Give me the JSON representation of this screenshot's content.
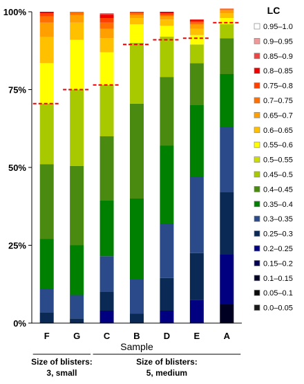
{
  "chart_data": {
    "type": "bar",
    "stacked": true,
    "xlabel": "Sample",
    "ylabel": "",
    "ylim": [
      0,
      100
    ],
    "y_ticks": [
      "0%",
      "25%",
      "50%",
      "75%",
      "100%"
    ],
    "categories": [
      "F",
      "G",
      "C",
      "B",
      "D",
      "E",
      "A"
    ],
    "legend_title": "LC",
    "legend_position": "right",
    "series": [
      {
        "name": "0.0–0.05",
        "color": "#1a1a1a",
        "values": [
          0,
          0,
          0,
          0,
          0,
          0,
          0
        ]
      },
      {
        "name": "0.05–0.1",
        "color": "#0a0a0a",
        "values": [
          0,
          0,
          0,
          0,
          0,
          0,
          0
        ]
      },
      {
        "name": "0.1–0.15",
        "color": "#000022",
        "values": [
          0,
          0,
          0,
          0,
          0,
          0,
          6
        ]
      },
      {
        "name": "0.15–0.2",
        "color": "#000055",
        "values": [
          0,
          0,
          0,
          0,
          0,
          0,
          0
        ]
      },
      {
        "name": "0.2–0.25",
        "color": "#000080",
        "values": [
          0,
          0,
          4,
          0,
          4,
          7.5,
          16
        ]
      },
      {
        "name": "0.25–0.3",
        "color": "#0a2a55",
        "values": [
          3.5,
          1.5,
          6,
          3,
          10.5,
          15,
          20
        ]
      },
      {
        "name": "0.3–0.35",
        "color": "#2a4a8a",
        "values": [
          7.5,
          7.5,
          11.5,
          11,
          17.5,
          24.5,
          21
        ]
      },
      {
        "name": "0.35–0.4",
        "color": "#008000",
        "values": [
          16,
          16,
          18,
          26,
          25,
          23,
          17
        ]
      },
      {
        "name": "0.4–0.45",
        "color": "#4a8a10",
        "values": [
          24,
          25.5,
          20.5,
          30.5,
          22,
          13.5,
          11.5
        ]
      },
      {
        "name": "0.45–0.5",
        "color": "#a8c800",
        "values": [
          19.5,
          24.5,
          16.5,
          19.5,
          13,
          6,
          4.5
        ]
      },
      {
        "name": "0.5–0.55",
        "color": "#ccdd00",
        "values": [
          0,
          0,
          0,
          0,
          0,
          0,
          0
        ]
      },
      {
        "name": "0.55–0.6",
        "color": "#ffff00",
        "values": [
          13,
          16,
          10.5,
          6,
          3.5,
          3,
          2
        ]
      },
      {
        "name": "0.6–0.65",
        "color": "#ffc000",
        "values": [
          8.5,
          5.5,
          4.5,
          2,
          2,
          2,
          1.5
        ]
      },
      {
        "name": "0.65–0.7",
        "color": "#ffa000",
        "values": [
          4.5,
          2.5,
          3,
          1,
          1,
          1.5,
          1
        ]
      },
      {
        "name": "0.7–0.75",
        "color": "#ff7000",
        "values": [
          2,
          1,
          2,
          0.5,
          0.5,
          0.5,
          0.3
        ]
      },
      {
        "name": "0.75–0.8",
        "color": "#ff4000",
        "values": [
          1,
          0,
          1.5,
          0.5,
          0.5,
          0.5,
          0.2
        ]
      },
      {
        "name": "0.8–0.85",
        "color": "#ee0000",
        "values": [
          0.5,
          0,
          1,
          0,
          0.5,
          0.5,
          0
        ]
      },
      {
        "name": "0.85–0.9",
        "color": "#ee4444",
        "values": [
          0,
          0,
          0.5,
          0,
          0,
          0,
          0
        ]
      },
      {
        "name": "0.9–0.95",
        "color": "#ee9999",
        "values": [
          0,
          0,
          0,
          0,
          0,
          0,
          0
        ]
      },
      {
        "name": "0.95–1.0",
        "color": "#ffffff",
        "values": [
          0,
          0,
          0,
          0,
          0,
          0,
          0
        ]
      }
    ],
    "threshold_markers": [
      70.5,
      75,
      76.5,
      89.5,
      91,
      91.5,
      96.5
    ],
    "threshold_color": "#ee0000",
    "groups": [
      {
        "label_line1": "Size of blisters:",
        "label_line2": "3, small",
        "categories": [
          "F",
          "G"
        ]
      },
      {
        "label_line1": "Size of blisters:",
        "label_line2": "5, medium",
        "categories": [
          "C",
          "B",
          "D",
          "E",
          "A"
        ]
      }
    ]
  }
}
